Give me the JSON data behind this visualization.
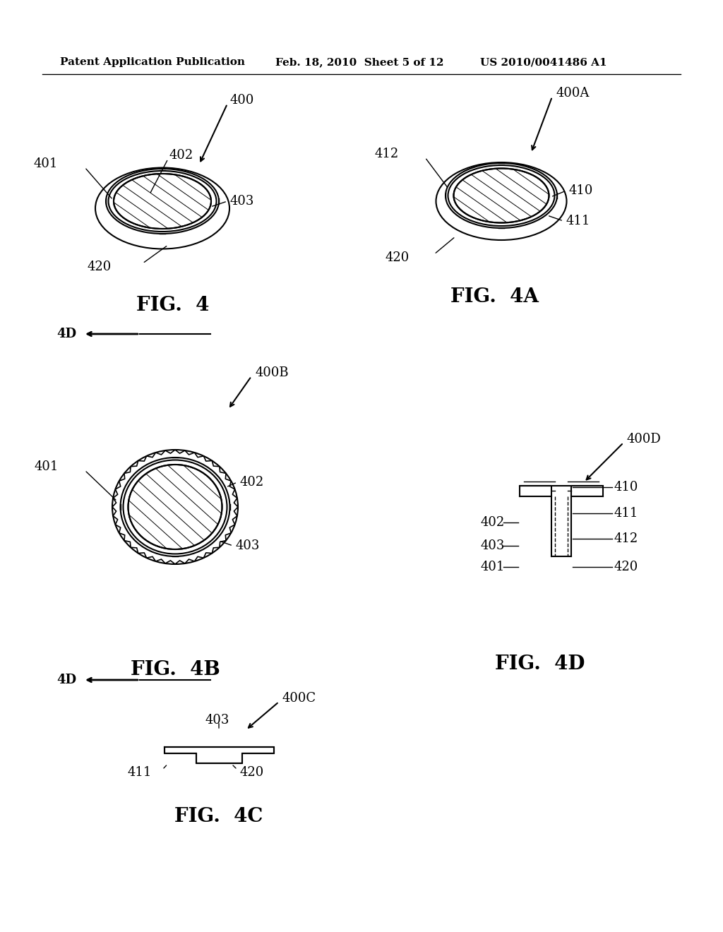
{
  "bg_color": "#ffffff",
  "header_left": "Patent Application Publication",
  "header_mid": "Feb. 18, 2010  Sheet 5 of 12",
  "header_right": "US 2010/0041486 A1",
  "fig4_title": "FIG.  4",
  "fig4a_title": "FIG.  4A",
  "fig4b_title": "FIG.  4B",
  "fig4c_title": "FIG.  4C",
  "fig4d_title": "FIG.  4D",
  "line_color": "#000000",
  "lw_main": 1.5,
  "lw_thin": 1.0,
  "hatch_lw": 0.7,
  "label_fontsize": 13,
  "caption_fontsize": 20,
  "header_fontsize": 11
}
